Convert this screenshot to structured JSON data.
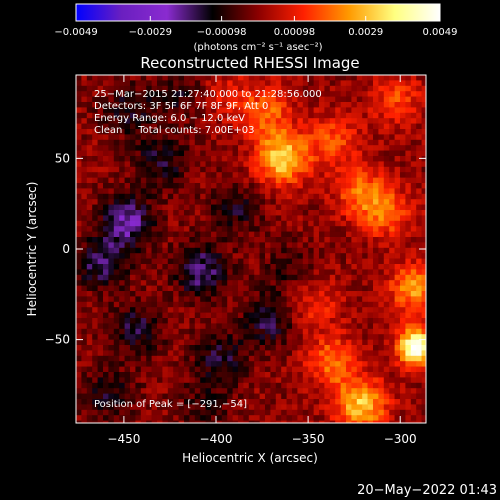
{
  "chart_data": {
    "type": "heatmap",
    "title": "Reconstructed RHESSI Image",
    "xlabel": "Heliocentric X (arcsec)",
    "ylabel": "Heliocentric Y (arcsec)",
    "xlim": [
      -476,
      -286
    ],
    "ylim": [
      -96,
      96
    ],
    "x_ticks": [
      -450,
      -400,
      -350,
      -300
    ],
    "x_tick_labels": [
      "−450",
      "−400",
      "−350",
      "−300"
    ],
    "y_ticks": [
      50,
      0,
      -50
    ],
    "y_tick_labels": [
      "50",
      "0",
      "−50"
    ],
    "info_lines": [
      "25−Mar−2015 21:27:40.000 to 21:28:56.000",
      "Detectors: 3F 5F 6F 7F 8F 9F, Att 0",
      "Energy Range: 6.0 − 12.0 keV",
      "Clean     Total counts: 7.00E+03"
    ],
    "peak_label": "Position of Peak = [−291,−54]",
    "peak": [
      -291,
      -54
    ],
    "colorbar": {
      "min": -0.0049,
      "max": 0.0049,
      "ticks": [
        -0.0049,
        -0.0029,
        -0.00098,
        0.00098,
        0.0029,
        0.0049
      ],
      "tick_labels": [
        "−0.0049",
        "−0.0029",
        "−0.00098",
        "0.00098",
        "0.0029",
        "0.0049"
      ],
      "units": "(photons cm⁻² s⁻¹ asec⁻²)",
      "colors": [
        "#0000ff",
        "#6a1fc0",
        "#8a2bd0",
        "#000000",
        "#8b0000",
        "#ff2000",
        "#ff9a00",
        "#ffff80",
        "#ffffff"
      ]
    },
    "sources": [
      {
        "x": -291,
        "y": -54,
        "value": 0.0049
      },
      {
        "x": -292,
        "y": -22,
        "value": 0.0024
      },
      {
        "x": -364,
        "y": 50,
        "value": 0.0033
      },
      {
        "x": -321,
        "y": -86,
        "value": 0.003
      },
      {
        "x": -337,
        "y": -62,
        "value": 0.002
      },
      {
        "x": -373,
        "y": 76,
        "value": 0.0018
      },
      {
        "x": -322,
        "y": 32,
        "value": 0.0018
      },
      {
        "x": -336,
        "y": 60,
        "value": 0.0016
      },
      {
        "x": -308,
        "y": 20,
        "value": 0.0019
      },
      {
        "x": -302,
        "y": 82,
        "value": 0.0015
      },
      {
        "x": -346,
        "y": -30,
        "value": 0.0012
      },
      {
        "x": -395,
        "y": 86,
        "value": 0.0008
      },
      {
        "x": -448,
        "y": 15,
        "value": -0.0022
      },
      {
        "x": -408,
        "y": -12,
        "value": -0.002
      },
      {
        "x": -462,
        "y": -8,
        "value": -0.0018
      },
      {
        "x": -443,
        "y": -44,
        "value": -0.0015
      },
      {
        "x": -430,
        "y": 48,
        "value": -0.0014
      },
      {
        "x": -447,
        "y": 76,
        "value": -0.0012
      },
      {
        "x": -398,
        "y": -60,
        "value": -0.0014
      },
      {
        "x": -372,
        "y": -40,
        "value": -0.0015
      },
      {
        "x": -390,
        "y": 22,
        "value": -0.0012
      },
      {
        "x": -458,
        "y": -80,
        "value": -0.0012
      },
      {
        "x": -420,
        "y": 85,
        "value": -0.001
      },
      {
        "x": -360,
        "y": -12,
        "value": -0.0009
      },
      {
        "x": -406,
        "y": -86,
        "value": -0.0009
      }
    ]
  },
  "timestamp": "20−May−2022 01:43"
}
